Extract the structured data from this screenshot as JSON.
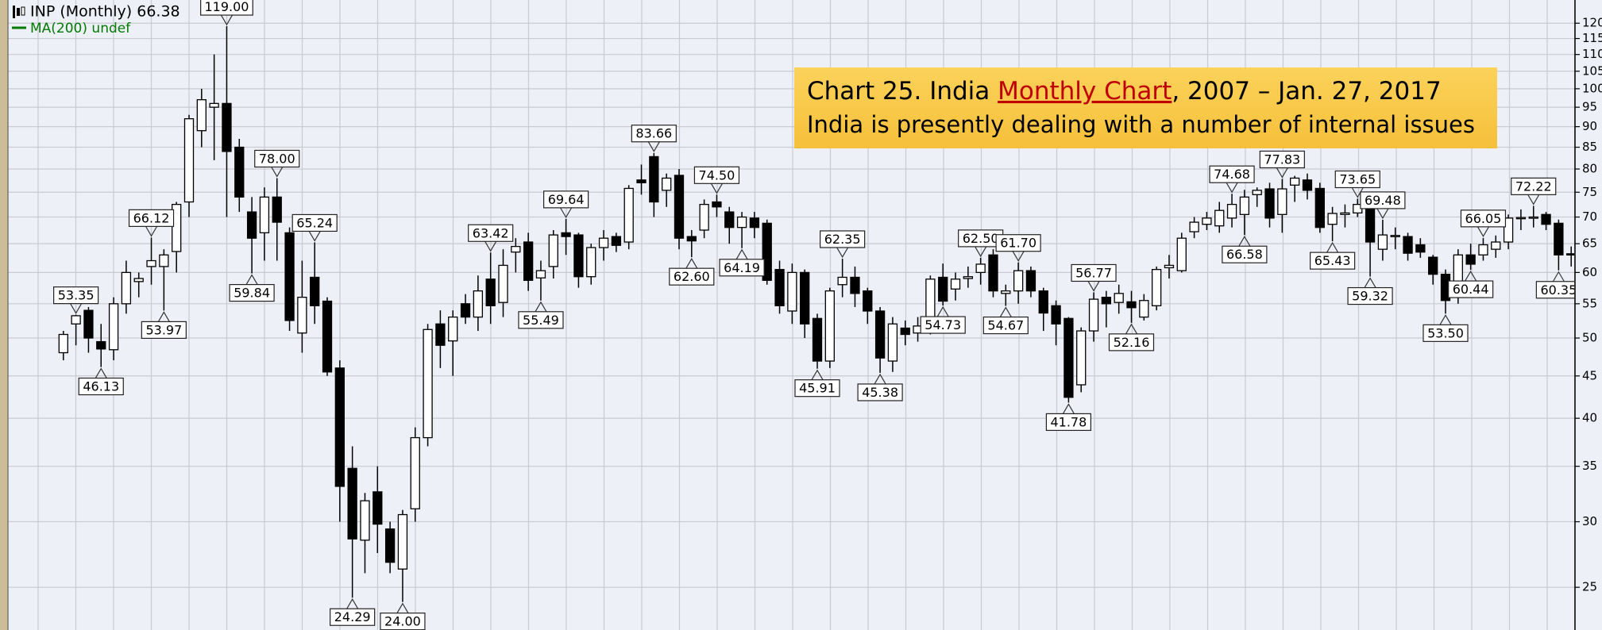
{
  "chart_data": {
    "type": "candlestick",
    "legend": "INP (Monthly) 66.38",
    "ma_legend": "MA(200) undef",
    "ma_color": "#007a00",
    "title_parts": [
      "Chart 25. India ",
      "Monthly Chart",
      ", 2007 – Jan. 27, 2017"
    ],
    "subtitle": "India is presently dealing with a number of internal issues",
    "up_color": "#ffffff",
    "down_color": "#000000",
    "log_scale": true,
    "grid": true,
    "ylim": [
      22.2,
      128
    ],
    "yticks": [
      25,
      30,
      35,
      40,
      45,
      50,
      55,
      60,
      65,
      70,
      75,
      80,
      85,
      90,
      95,
      100,
      105,
      110,
      115,
      120
    ],
    "candles": [
      {
        "o": 48,
        "h": 51,
        "l": 47,
        "c": 50.5
      },
      {
        "o": 52,
        "h": 53.35,
        "l": 49,
        "c": 53.2,
        "high_label": "53.35"
      },
      {
        "o": 54,
        "h": 54.5,
        "l": 48,
        "c": 50
      },
      {
        "o": 49.5,
        "h": 52,
        "l": 46.13,
        "c": 48.5,
        "low_label": "46.13"
      },
      {
        "o": 48.4,
        "h": 56,
        "l": 47,
        "c": 55
      },
      {
        "o": 55,
        "h": 62,
        "l": 53.5,
        "c": 60
      },
      {
        "o": 58.5,
        "h": 60,
        "l": 56,
        "c": 59
      },
      {
        "o": 61,
        "h": 66.12,
        "l": 58,
        "c": 62,
        "high_label": "66.12"
      },
      {
        "o": 61,
        "h": 64,
        "l": 53.97,
        "c": 63,
        "low_label": "53.97"
      },
      {
        "o": 63.6,
        "h": 73,
        "l": 60,
        "c": 72.5
      },
      {
        "o": 73,
        "h": 93,
        "l": 70,
        "c": 92
      },
      {
        "o": 89,
        "h": 100,
        "l": 85,
        "c": 97
      },
      {
        "o": 95,
        "h": 110,
        "l": 82,
        "c": 96
      },
      {
        "o": 96,
        "h": 119,
        "l": 70,
        "c": 84,
        "high_label": "119.00"
      },
      {
        "o": 85,
        "h": 87,
        "l": 71,
        "c": 74
      },
      {
        "o": 71,
        "h": 74,
        "l": 59.84,
        "c": 66,
        "low_label": "59.84"
      },
      {
        "o": 67,
        "h": 76,
        "l": 62,
        "c": 74
      },
      {
        "o": 74,
        "h": 78,
        "l": 62,
        "c": 69,
        "high_label": "78.00"
      },
      {
        "o": 67,
        "h": 68,
        "l": 51,
        "c": 52.5
      },
      {
        "o": 50.7,
        "h": 62,
        "l": 48,
        "c": 56
      },
      {
        "o": 59.2,
        "h": 65.24,
        "l": 52,
        "c": 54.7,
        "high_label": "65.24"
      },
      {
        "o": 55.4,
        "h": 56,
        "l": 45,
        "c": 45.5
      },
      {
        "o": 46,
        "h": 47,
        "l": 30,
        "c": 33.1
      },
      {
        "o": 34.8,
        "h": 37,
        "l": 24.29,
        "c": 28.6,
        "low_label": "24.29"
      },
      {
        "o": 28.5,
        "h": 32.5,
        "l": 26,
        "c": 31.8
      },
      {
        "o": 32.6,
        "h": 35,
        "l": 27.5,
        "c": 29.8
      },
      {
        "o": 29.4,
        "h": 30,
        "l": 26,
        "c": 26.8
      },
      {
        "o": 26.3,
        "h": 31,
        "l": 24,
        "c": 30.6,
        "low_label": "24.00"
      },
      {
        "o": 31.1,
        "h": 39,
        "l": 30,
        "c": 37.9
      },
      {
        "o": 37.9,
        "h": 52,
        "l": 37,
        "c": 51.2
      },
      {
        "o": 52,
        "h": 54,
        "l": 46,
        "c": 49
      },
      {
        "o": 49.6,
        "h": 54,
        "l": 45,
        "c": 53
      },
      {
        "o": 55,
        "h": 56.5,
        "l": 52,
        "c": 53
      },
      {
        "o": 53,
        "h": 59.5,
        "l": 51,
        "c": 57
      },
      {
        "o": 58.9,
        "h": 63.42,
        "l": 52,
        "c": 54.7,
        "high_label": "63.42"
      },
      {
        "o": 55.2,
        "h": 64,
        "l": 53,
        "c": 61.2
      },
      {
        "o": 63.5,
        "h": 66,
        "l": 60,
        "c": 64.5
      },
      {
        "o": 65.3,
        "h": 67,
        "l": 57,
        "c": 58.7
      },
      {
        "o": 59.1,
        "h": 62,
        "l": 55.49,
        "c": 60.3,
        "low_label": "55.49"
      },
      {
        "o": 61,
        "h": 67.5,
        "l": 59,
        "c": 66.6
      },
      {
        "o": 67,
        "h": 69.64,
        "l": 63,
        "c": 66.3,
        "high_label": "69.64"
      },
      {
        "o": 66.6,
        "h": 67,
        "l": 57.5,
        "c": 59.3
      },
      {
        "o": 59.3,
        "h": 65,
        "l": 58,
        "c": 64.3
      },
      {
        "o": 64.3,
        "h": 67.5,
        "l": 62,
        "c": 66
      },
      {
        "o": 66.3,
        "h": 67,
        "l": 63.5,
        "c": 64.7
      },
      {
        "o": 65.3,
        "h": 76.5,
        "l": 64,
        "c": 75.8
      },
      {
        "o": 77.6,
        "h": 81,
        "l": 74.5,
        "c": 77
      },
      {
        "o": 82.8,
        "h": 83.66,
        "l": 70,
        "c": 73,
        "high_label": "83.66"
      },
      {
        "o": 75.4,
        "h": 79,
        "l": 72,
        "c": 78
      },
      {
        "o": 78.6,
        "h": 80,
        "l": 64,
        "c": 66
      },
      {
        "o": 66.3,
        "h": 67.5,
        "l": 62.6,
        "c": 65.5,
        "low_label": "62.60"
      },
      {
        "o": 67.5,
        "h": 73.5,
        "l": 66,
        "c": 72.5
      },
      {
        "o": 73,
        "h": 74.5,
        "l": 70,
        "c": 72,
        "high_label": "74.50"
      },
      {
        "o": 71,
        "h": 72,
        "l": 65,
        "c": 68
      },
      {
        "o": 68,
        "h": 71,
        "l": 64.19,
        "c": 70,
        "low_label": "64.19"
      },
      {
        "o": 69.8,
        "h": 71,
        "l": 66,
        "c": 68
      },
      {
        "o": 68.8,
        "h": 69.5,
        "l": 58,
        "c": 58.7
      },
      {
        "o": 60.5,
        "h": 62,
        "l": 53.5,
        "c": 54.7
      },
      {
        "o": 53.9,
        "h": 61.5,
        "l": 52,
        "c": 60
      },
      {
        "o": 60,
        "h": 60.5,
        "l": 50,
        "c": 52
      },
      {
        "o": 52.8,
        "h": 53.5,
        "l": 45.91,
        "c": 46.9,
        "low_label": "45.91"
      },
      {
        "o": 46.9,
        "h": 57.5,
        "l": 46,
        "c": 57
      },
      {
        "o": 58,
        "h": 62.35,
        "l": 56,
        "c": 59.2,
        "high_label": "62.35"
      },
      {
        "o": 59.2,
        "h": 61,
        "l": 54.5,
        "c": 56.6
      },
      {
        "o": 57,
        "h": 57.5,
        "l": 52,
        "c": 53.9
      },
      {
        "o": 53.9,
        "h": 54.5,
        "l": 45.38,
        "c": 47.3,
        "low_label": "45.38"
      },
      {
        "o": 46.9,
        "h": 53,
        "l": 45.5,
        "c": 52
      },
      {
        "o": 51.4,
        "h": 52.5,
        "l": 49,
        "c": 50.5
      },
      {
        "o": 50.7,
        "h": 53,
        "l": 49.5,
        "c": 51.7
      },
      {
        "o": 51,
        "h": 59.5,
        "l": 50.5,
        "c": 58.9
      },
      {
        "o": 59.2,
        "h": 61.5,
        "l": 54.73,
        "c": 55.4,
        "low_label": "54.73"
      },
      {
        "o": 57.3,
        "h": 60,
        "l": 55.5,
        "c": 58.9
      },
      {
        "o": 59,
        "h": 61,
        "l": 57.5,
        "c": 59.3
      },
      {
        "o": 60,
        "h": 62.5,
        "l": 58,
        "c": 61.4,
        "high_label": "62.50"
      },
      {
        "o": 63,
        "h": 64,
        "l": 56,
        "c": 57
      },
      {
        "o": 56.6,
        "h": 58,
        "l": 54.67,
        "c": 57,
        "low_label": "54.67"
      },
      {
        "o": 57,
        "h": 61.7,
        "l": 55,
        "c": 60.3,
        "high_label": "61.70"
      },
      {
        "o": 60.3,
        "h": 61,
        "l": 56,
        "c": 57
      },
      {
        "o": 57,
        "h": 57.5,
        "l": 51,
        "c": 53.6
      },
      {
        "o": 54.7,
        "h": 55.5,
        "l": 49,
        "c": 52
      },
      {
        "o": 52.8,
        "h": 53,
        "l": 41.78,
        "c": 42.4,
        "low_label": "41.78"
      },
      {
        "o": 43.9,
        "h": 51.5,
        "l": 43,
        "c": 51
      },
      {
        "o": 51,
        "h": 56.77,
        "l": 49.5,
        "c": 55.7,
        "high_label": "56.77"
      },
      {
        "o": 56,
        "h": 57,
        "l": 51.5,
        "c": 55
      },
      {
        "o": 55.2,
        "h": 58,
        "l": 53.5,
        "c": 56.6
      },
      {
        "o": 55.3,
        "h": 57,
        "l": 52.16,
        "c": 54.4,
        "low_label": "52.16"
      },
      {
        "o": 53,
        "h": 56.5,
        "l": 52.5,
        "c": 55.5
      },
      {
        "o": 54.7,
        "h": 61,
        "l": 54,
        "c": 60.5
      },
      {
        "o": 60.8,
        "h": 63,
        "l": 59,
        "c": 61.2
      },
      {
        "o": 60.3,
        "h": 67,
        "l": 60,
        "c": 66
      },
      {
        "o": 67.2,
        "h": 70,
        "l": 66,
        "c": 69
      },
      {
        "o": 68.6,
        "h": 71,
        "l": 67.5,
        "c": 69.8
      },
      {
        "o": 68.3,
        "h": 73,
        "l": 67,
        "c": 71.3
      },
      {
        "o": 69.8,
        "h": 74.68,
        "l": 68,
        "c": 72.5,
        "high_label": "74.68"
      },
      {
        "o": 70.5,
        "h": 75.5,
        "l": 66.58,
        "c": 74,
        "low_label": "66.58"
      },
      {
        "o": 74.5,
        "h": 76,
        "l": 72,
        "c": 75.4
      },
      {
        "o": 75.7,
        "h": 77,
        "l": 68,
        "c": 69.8
      },
      {
        "o": 70.5,
        "h": 77.83,
        "l": 67,
        "c": 75.7,
        "high_label": "77.83"
      },
      {
        "o": 76.5,
        "h": 78.5,
        "l": 73,
        "c": 78
      },
      {
        "o": 77.6,
        "h": 79,
        "l": 73.5,
        "c": 75.4
      },
      {
        "o": 75.8,
        "h": 77,
        "l": 67,
        "c": 68
      },
      {
        "o": 68.6,
        "h": 72,
        "l": 65.43,
        "c": 70.7,
        "low_label": "65.43"
      },
      {
        "o": 70.5,
        "h": 72.5,
        "l": 68,
        "c": 70.8
      },
      {
        "o": 70.8,
        "h": 73.65,
        "l": 70,
        "c": 72.5,
        "high_label": "73.65"
      },
      {
        "o": 71.9,
        "h": 73,
        "l": 59.32,
        "c": 65.3,
        "low_label": "59.32"
      },
      {
        "o": 64,
        "h": 69.48,
        "l": 62,
        "c": 66.6,
        "high_label": "69.48"
      },
      {
        "o": 66.3,
        "h": 68,
        "l": 64,
        "c": 66.5
      },
      {
        "o": 66.3,
        "h": 67,
        "l": 62,
        "c": 63.3
      },
      {
        "o": 64.8,
        "h": 66,
        "l": 62.5,
        "c": 63.5
      },
      {
        "o": 62.6,
        "h": 63,
        "l": 58,
        "c": 59.7
      },
      {
        "o": 59.7,
        "h": 60.5,
        "l": 53.5,
        "c": 55.5,
        "low_label": "53.50"
      },
      {
        "o": 56.2,
        "h": 64,
        "l": 55,
        "c": 63
      },
      {
        "o": 63,
        "h": 65,
        "l": 60.44,
        "c": 61.4,
        "low_label": "60.44"
      },
      {
        "o": 63,
        "h": 66.05,
        "l": 62,
        "c": 64.8,
        "high_label": "66.05"
      },
      {
        "o": 64,
        "h": 66.5,
        "l": 62.5,
        "c": 65.3
      },
      {
        "o": 65.3,
        "h": 70.5,
        "l": 64,
        "c": 69.8
      },
      {
        "o": 69.7,
        "h": 71.5,
        "l": 67.5,
        "c": 69.9
      },
      {
        "o": 69.8,
        "h": 72.22,
        "l": 68,
        "c": 70,
        "high_label": "72.22"
      },
      {
        "o": 70.5,
        "h": 71,
        "l": 67.5,
        "c": 68.6
      },
      {
        "o": 68.8,
        "h": 69.5,
        "l": 60.35,
        "c": 63,
        "low_label": "60.35"
      },
      {
        "o": 63.2,
        "h": 64.5,
        "l": 61,
        "c": 63
      },
      {
        "o": 63,
        "h": 67,
        "l": 62,
        "c": 66.38
      }
    ]
  }
}
